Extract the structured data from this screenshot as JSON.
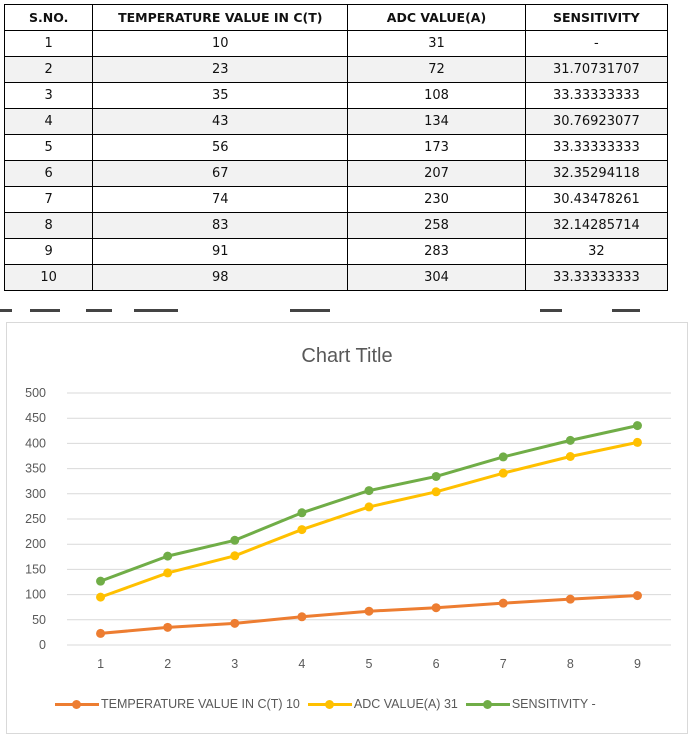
{
  "table": {
    "headers": [
      "S.NO.",
      "TEMPERATURE VALUE IN C(T)",
      "ADC VALUE(A)",
      "SENSITIVITY"
    ],
    "rows": [
      [
        "1",
        "10",
        "31",
        "-"
      ],
      [
        "2",
        "23",
        "72",
        "31.70731707"
      ],
      [
        "3",
        "35",
        "108",
        "33.33333333"
      ],
      [
        "4",
        "43",
        "134",
        "30.76923077"
      ],
      [
        "5",
        "56",
        "173",
        "33.33333333"
      ],
      [
        "6",
        "67",
        "207",
        "32.35294118"
      ],
      [
        "7",
        "74",
        "230",
        "30.43478261"
      ],
      [
        "8",
        "83",
        "258",
        "32.14285714"
      ],
      [
        "9",
        "91",
        "283",
        "32"
      ],
      [
        "10",
        "98",
        "304",
        "33.33333333"
      ]
    ]
  },
  "chart_data": {
    "type": "line",
    "title": "Chart Title",
    "stacked": true,
    "x": [
      1,
      2,
      3,
      4,
      5,
      6,
      7,
      8,
      9
    ],
    "ylim": [
      0,
      500
    ],
    "yticks": [
      0,
      50,
      100,
      150,
      200,
      250,
      300,
      350,
      400,
      450,
      500
    ],
    "grid": true,
    "legend_position": "bottom",
    "series": [
      {
        "name": "TEMPERATURE VALUE IN C(T) 10",
        "color": "#ed7d31",
        "values": [
          23,
          35,
          43,
          56,
          67,
          74,
          83,
          91,
          98
        ]
      },
      {
        "name": "ADC VALUE(A) 31",
        "color": "#ffc000",
        "values": [
          72,
          108,
          134,
          173,
          207,
          230,
          258,
          283,
          304
        ]
      },
      {
        "name": "SENSITIVITY -",
        "color": "#70ad47",
        "values": [
          31.70731707,
          33.33333333,
          30.76923077,
          33.33333333,
          32.35294118,
          30.43478261,
          32.14285714,
          32,
          33.33333333
        ]
      }
    ]
  }
}
